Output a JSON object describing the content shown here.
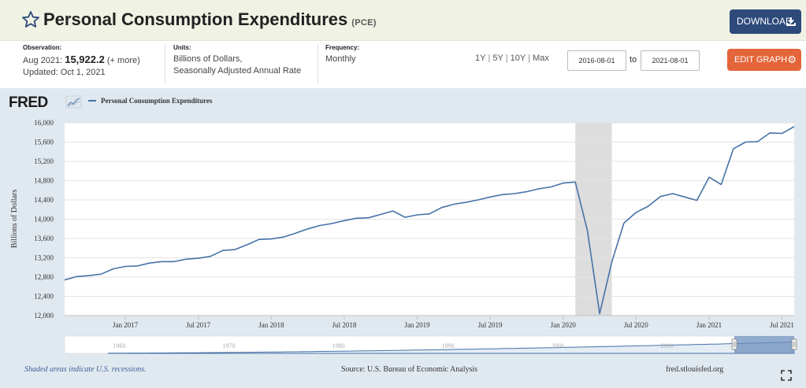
{
  "header": {
    "title": "Personal Consumption Expenditures",
    "series_code": "(PCE)",
    "download_label": "DOWNLOAD",
    "accent_color": "#2d4a7a"
  },
  "meta": {
    "observation_label": "Observation:",
    "observation_date": "Aug 2021:",
    "observation_value": "15,922.2",
    "observation_more": "(+ more)",
    "updated": "Updated: Oct 1, 2021",
    "units_label": "Units:",
    "units_line1": "Billions of Dollars,",
    "units_line2": "Seasonally Adjusted Annual Rate",
    "frequency_label": "Frequency:",
    "frequency_value": "Monthly"
  },
  "controls": {
    "range_1y": "1Y",
    "range_5y": "5Y",
    "range_10y": "10Y",
    "range_max": "Max",
    "start_date": "2016-08-01",
    "to_label": "to",
    "end_date": "2021-08-01",
    "edit_label": "EDIT GRAPH",
    "edit_color": "#e4653a"
  },
  "branding": {
    "logo": "FRED"
  },
  "chart_data": {
    "type": "line",
    "title": "",
    "legend": [
      "Personal Consumption Expenditures"
    ],
    "ylabel": "Billions of Dollars",
    "xlabel": "",
    "ylim": [
      12000,
      16000
    ],
    "yticks": [
      "16,000",
      "15,600",
      "15,200",
      "14,800",
      "14,400",
      "14,000",
      "13,600",
      "13,200",
      "12,800",
      "12,400",
      "12,000"
    ],
    "ytick_values": [
      16000,
      15600,
      15200,
      14800,
      14400,
      14000,
      13600,
      13200,
      12800,
      12400,
      12000
    ],
    "xticks": [
      "Jan 2017",
      "Jul 2017",
      "Jan 2018",
      "Jul 2018",
      "Jan 2019",
      "Jul 2019",
      "Jan 2020",
      "Jul 2020",
      "Jan 2021",
      "Jul 2021"
    ],
    "xtick_dates": [
      "2017-01",
      "2017-07",
      "2018-01",
      "2018-07",
      "2019-01",
      "2019-07",
      "2020-01",
      "2020-07",
      "2021-01",
      "2021-07"
    ],
    "x_range": [
      "2016-08",
      "2021-08"
    ],
    "recession": {
      "start": "2020-02",
      "end": "2020-04"
    },
    "line_color": "#4572a7",
    "grid": true,
    "series": [
      {
        "name": "Personal Consumption Expenditures",
        "x": [
          "2016-08",
          "2016-09",
          "2016-10",
          "2016-11",
          "2016-12",
          "2017-01",
          "2017-02",
          "2017-03",
          "2017-04",
          "2017-05",
          "2017-06",
          "2017-07",
          "2017-08",
          "2017-09",
          "2017-10",
          "2017-11",
          "2017-12",
          "2018-01",
          "2018-02",
          "2018-03",
          "2018-04",
          "2018-05",
          "2018-06",
          "2018-07",
          "2018-08",
          "2018-09",
          "2018-10",
          "2018-11",
          "2018-12",
          "2019-01",
          "2019-02",
          "2019-03",
          "2019-04",
          "2019-05",
          "2019-06",
          "2019-07",
          "2019-08",
          "2019-09",
          "2019-10",
          "2019-11",
          "2019-12",
          "2020-01",
          "2020-02",
          "2020-03",
          "2020-04",
          "2020-05",
          "2020-06",
          "2020-07",
          "2020-08",
          "2020-09",
          "2020-10",
          "2020-11",
          "2020-12",
          "2021-01",
          "2021-02",
          "2021-03",
          "2021-04",
          "2021-05",
          "2021-06",
          "2021-07",
          "2021-08"
        ],
        "values": [
          12740,
          12810,
          12830,
          12860,
          12970,
          13020,
          13030,
          13090,
          13120,
          13120,
          13170,
          13190,
          13230,
          13350,
          13370,
          13470,
          13580,
          13590,
          13630,
          13710,
          13800,
          13870,
          13910,
          13970,
          14020,
          14030,
          14100,
          14170,
          14040,
          14090,
          14110,
          14240,
          14310,
          14350,
          14400,
          14460,
          14510,
          14530,
          14570,
          14630,
          14670,
          14750,
          14770,
          13760,
          12040,
          13110,
          13920,
          14140,
          14270,
          14470,
          14530,
          14460,
          14390,
          14870,
          14720,
          15460,
          15600,
          15610,
          15790,
          15780,
          15922
        ]
      }
    ]
  },
  "overview": {
    "years": [
      "1960",
      "1970",
      "1980",
      "1990",
      "2000",
      "2010"
    ]
  },
  "footer": {
    "recession_note": "Shaded areas indicate U.S. recessions.",
    "source": "Source: U.S. Bureau of Economic Analysis",
    "site": "fred.stlouisfed.org"
  }
}
